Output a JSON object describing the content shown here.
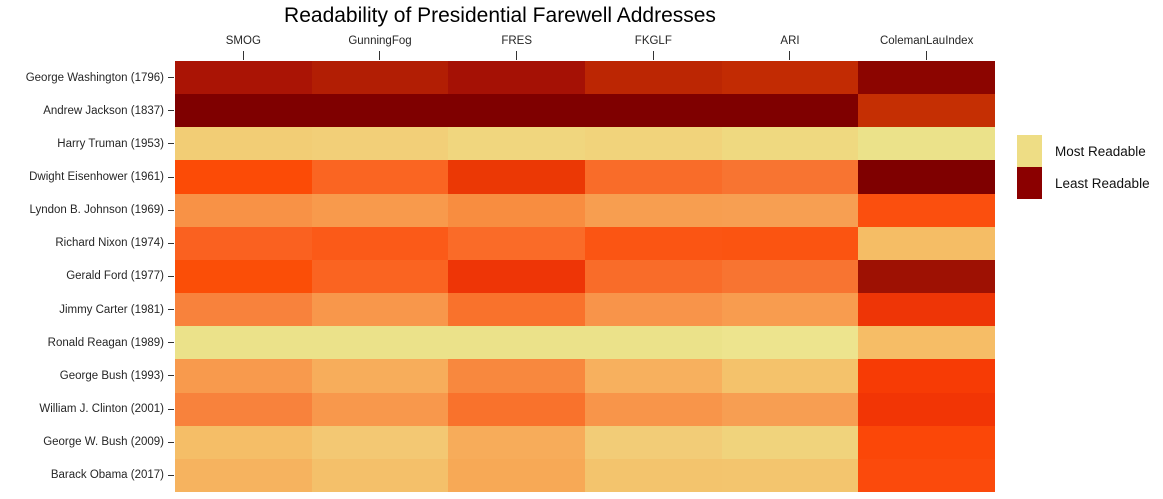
{
  "title": "Readability of Presidential Farewell Addresses",
  "legend": {
    "items": [
      {
        "label": "Most Readable",
        "color": "#eedd85"
      },
      {
        "label": "Least Readable",
        "color": "#8b0000"
      }
    ]
  },
  "chart_data": {
    "type": "heatmap",
    "title": "Readability of Presidential Farewell Addresses",
    "columns": [
      "SMOG",
      "GunningFog",
      "FRES",
      "FKGLF",
      "ARI",
      "ColemanLauIndex"
    ],
    "rows": [
      "George Washington (1796)",
      "Andrew Jackson (1837)",
      "Harry Truman (1953)",
      "Dwight Eisenhower (1961)",
      "Lyndon B. Johnson (1969)",
      "Richard Nixon (1974)",
      "Gerald Ford (1977)",
      "Jimmy Carter (1981)",
      "Ronald Reagan (1989)",
      "George Bush (1993)",
      "William J. Clinton (2001)",
      "George W. Bush (2009)",
      "Barack Obama (2017)"
    ],
    "cell_colors": [
      [
        "#aa1405",
        "#b21e04",
        "#a51105",
        "#bc2603",
        "#c22b03",
        "#8c0500"
      ],
      [
        "#7f0000",
        "#7f0000",
        "#7f0000",
        "#7f0000",
        "#7f0000",
        "#c52f03"
      ],
      [
        "#f2cd75",
        "#f2cf78",
        "#f0d67e",
        "#f1d37b",
        "#efd980",
        "#ebe28a"
      ],
      [
        "#fc4b06",
        "#fa6522",
        "#eb3805",
        "#f96c29",
        "#f87431",
        "#7f0000"
      ],
      [
        "#f89246",
        "#f89a4c",
        "#f88d40",
        "#f79e50",
        "#f79f52",
        "#fb4f0e"
      ],
      [
        "#fa6120",
        "#fb5a18",
        "#fa6b28",
        "#fb5513",
        "#fb5411",
        "#f5bd65"
      ],
      [
        "#fb4e07",
        "#fa6421",
        "#ee3506",
        "#f96c29",
        "#f87431",
        "#9e1103"
      ],
      [
        "#f8823c",
        "#f8974b",
        "#f9722c",
        "#f8944a",
        "#f89c4f",
        "#ee3506"
      ],
      [
        "#ebe28a",
        "#ebe28a",
        "#ebe28a",
        "#ebe28a",
        "#ede48e",
        "#f6bd66"
      ],
      [
        "#f89a4d",
        "#f7ad5b",
        "#f8883e",
        "#f7b05e",
        "#f4c26b",
        "#f73b05"
      ],
      [
        "#f8823c",
        "#f8984c",
        "#f9722c",
        "#f8954a",
        "#f79e52",
        "#f23505"
      ],
      [
        "#f5be67",
        "#f3c873",
        "#f7ac5a",
        "#f2cc77",
        "#f0d37c",
        "#fb4708"
      ],
      [
        "#f6b35f",
        "#f4c06a",
        "#f7a956",
        "#f3c46d",
        "#f3c56e",
        "#fb4a0c"
      ]
    ],
    "color_scale": {
      "most_readable_color": "#eedd85",
      "least_readable_color": "#8b0000"
    },
    "legend_entries": [
      "Most Readable",
      "Least Readable"
    ],
    "legend_position": "right",
    "values_shown": false
  }
}
